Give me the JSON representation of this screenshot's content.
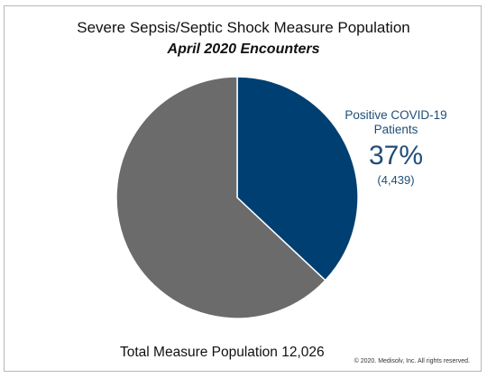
{
  "chart_data": {
    "type": "pie",
    "title": "Severe Sepsis/Septic Shock Measure Population",
    "subtitle": "April 2020 Encounters",
    "slices": [
      {
        "label": "Positive COVID-19 Patients",
        "percent": 37,
        "count_label": "(4,439)",
        "color": "#003f72"
      },
      {
        "label": "",
        "percent": 63,
        "color": "#6b6b6b"
      }
    ],
    "callout": {
      "label": "Positive COVID-19 Patients",
      "percent_label": "37%",
      "count_label": "(4,439)"
    },
    "total_label": "Total Measure Population 12,026"
  },
  "footer": {
    "copyright": "© 2020. Medisolv, Inc. All rights reserved."
  }
}
